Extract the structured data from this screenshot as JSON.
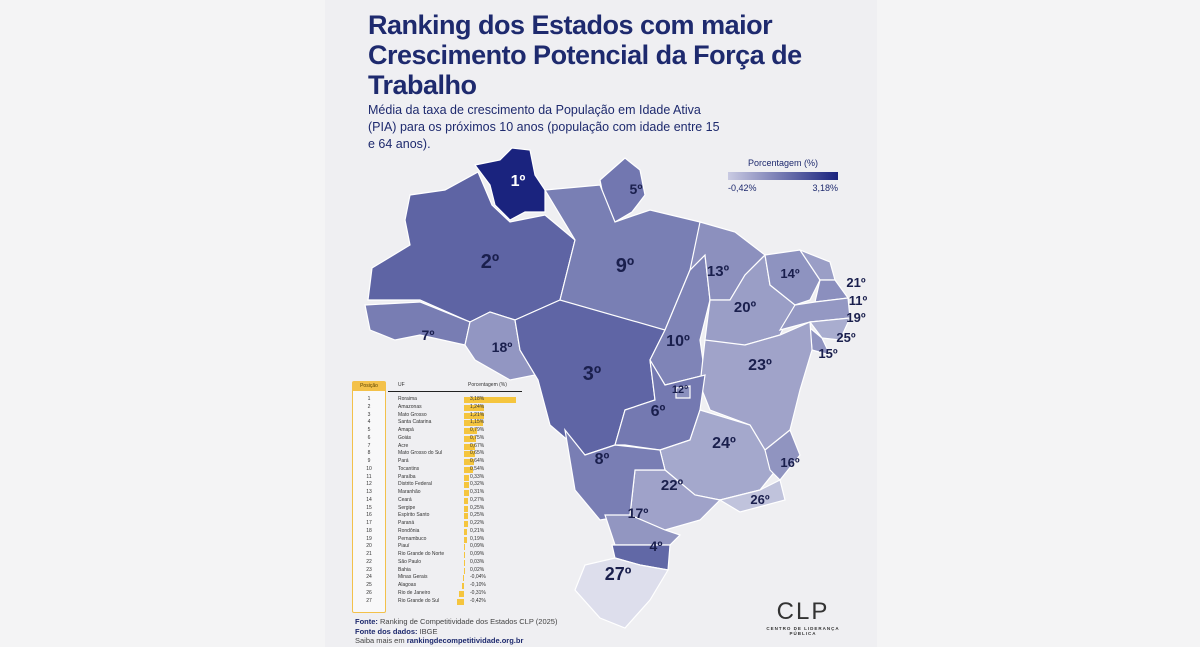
{
  "title": "Ranking dos Estados com maior Crescimento Potencial da Força de Trabalho",
  "subtitle": "Média da taxa de crescimento da População em Idade Ativa (PIA) para os próximos 10 anos (população com idade entre 15 e 64 anos).",
  "legend": {
    "title": "Porcentagem (%)",
    "min": "-0,42%",
    "max": "3,18%",
    "min_value": -0.42,
    "max_value": 3.18,
    "color_low": "#c9cae2",
    "color_high": "#1a237e"
  },
  "table": {
    "headers": {
      "pos": "Posição",
      "uf": "UF",
      "pct": "Porcentagem (%)"
    },
    "rows": [
      {
        "pos": "1",
        "uf": "Roraima",
        "pct": "3,18%",
        "value": 3.18,
        "code": "RR"
      },
      {
        "pos": "2",
        "uf": "Amazonas",
        "pct": "1,24%",
        "value": 1.24,
        "code": "AM"
      },
      {
        "pos": "3",
        "uf": "Mato Grosso",
        "pct": "1,21%",
        "value": 1.21,
        "code": "MT"
      },
      {
        "pos": "4",
        "uf": "Santa Catarina",
        "pct": "1,15%",
        "value": 1.15,
        "code": "SC"
      },
      {
        "pos": "5",
        "uf": "Amapá",
        "pct": "0,79%",
        "value": 0.79,
        "code": "AP"
      },
      {
        "pos": "6",
        "uf": "Goiás",
        "pct": "0,75%",
        "value": 0.75,
        "code": "GO"
      },
      {
        "pos": "7",
        "uf": "Acre",
        "pct": "0,67%",
        "value": 0.67,
        "code": "AC"
      },
      {
        "pos": "8",
        "uf": "Mato Grosso do Sul",
        "pct": "0,65%",
        "value": 0.65,
        "code": "MS"
      },
      {
        "pos": "9",
        "uf": "Pará",
        "pct": "0,64%",
        "value": 0.64,
        "code": "PA"
      },
      {
        "pos": "10",
        "uf": "Tocantins",
        "pct": "0,54%",
        "value": 0.54,
        "code": "TO"
      },
      {
        "pos": "11",
        "uf": "Paraíba",
        "pct": "0,33%",
        "value": 0.33,
        "code": "PB"
      },
      {
        "pos": "12",
        "uf": "Distrito Federal",
        "pct": "0,32%",
        "value": 0.32,
        "code": "DF"
      },
      {
        "pos": "13",
        "uf": "Maranhão",
        "pct": "0,31%",
        "value": 0.31,
        "code": "MA"
      },
      {
        "pos": "14",
        "uf": "Ceará",
        "pct": "0,27%",
        "value": 0.27,
        "code": "CE"
      },
      {
        "pos": "15",
        "uf": "Sergipe",
        "pct": "0,25%",
        "value": 0.25,
        "code": "SE"
      },
      {
        "pos": "16",
        "uf": "Espírito Santo",
        "pct": "0,25%",
        "value": 0.25,
        "code": "ES"
      },
      {
        "pos": "17",
        "uf": "Paraná",
        "pct": "0,22%",
        "value": 0.22,
        "code": "PR"
      },
      {
        "pos": "18",
        "uf": "Rondônia",
        "pct": "0,21%",
        "value": 0.21,
        "code": "RO"
      },
      {
        "pos": "19",
        "uf": "Pernambuco",
        "pct": "0,19%",
        "value": 0.19,
        "code": "PE"
      },
      {
        "pos": "20",
        "uf": "Piauí",
        "pct": "0,09%",
        "value": 0.09,
        "code": "PI"
      },
      {
        "pos": "21",
        "uf": "Rio Grande do Norte",
        "pct": "0,09%",
        "value": 0.09,
        "code": "RN"
      },
      {
        "pos": "22",
        "uf": "São Paulo",
        "pct": "0,03%",
        "value": 0.03,
        "code": "SP"
      },
      {
        "pos": "23",
        "uf": "Bahia",
        "pct": "0,02%",
        "value": 0.02,
        "code": "BA"
      },
      {
        "pos": "24",
        "uf": "Minas Gerais",
        "pct": "-0,04%",
        "value": -0.04,
        "code": "MG"
      },
      {
        "pos": "25",
        "uf": "Alagoas",
        "pct": "-0,10%",
        "value": -0.1,
        "code": "AL"
      },
      {
        "pos": "26",
        "uf": "Rio de Janeiro",
        "pct": "-0,31%",
        "value": -0.31,
        "code": "RJ"
      },
      {
        "pos": "27",
        "uf": "Rio Grande do Sul",
        "pct": "-0,42%",
        "value": -0.42,
        "code": "RS"
      }
    ],
    "bar_color": "#f5c53e"
  },
  "map_labels": {
    "RR": "1º",
    "AM": "2º",
    "MT": "3º",
    "SC": "4º",
    "AP": "5º",
    "GO": "6º",
    "AC": "7º",
    "MS": "8º",
    "PA": "9º",
    "TO": "10º",
    "PB": "11º",
    "DF": "12º",
    "MA": "13º",
    "CE": "14º",
    "SE": "15º",
    "ES": "16º",
    "PR": "17º",
    "RO": "18º",
    "PE": "19º",
    "PI": "20º",
    "RN": "21º",
    "SP": "22º",
    "BA": "23º",
    "MG": "24º",
    "AL": "25º",
    "RJ": "26º",
    "RS": "27º"
  },
  "footer": {
    "source_label": "Fonte:",
    "source": " Ranking de Competitividade dos Estados CLP (2025)",
    "data_label": "Fonte dos dados:",
    "data": " IBGE",
    "more": "Saiba mais em ",
    "link": "rankingdecompetitividade.org.br"
  },
  "logo": {
    "name": "CLP",
    "tagline": "CENTRO DE LIDERANÇA PÚBLICA"
  }
}
